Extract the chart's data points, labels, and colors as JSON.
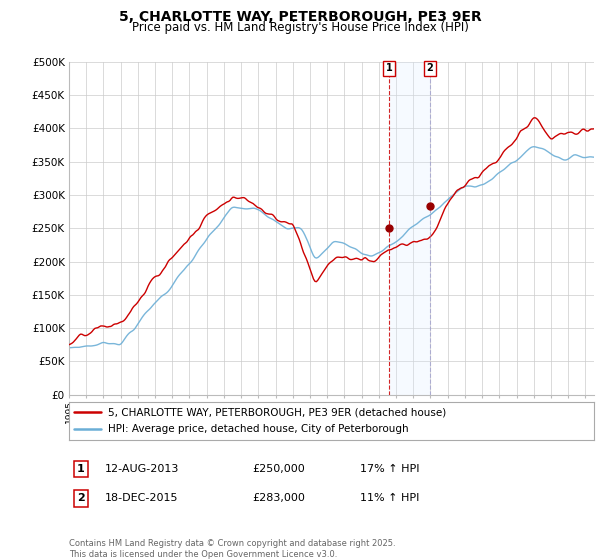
{
  "title": "5, CHARLOTTE WAY, PETERBOROUGH, PE3 9ER",
  "subtitle": "Price paid vs. HM Land Registry's House Price Index (HPI)",
  "ylabel_ticks": [
    "£0",
    "£50K",
    "£100K",
    "£150K",
    "£200K",
    "£250K",
    "£300K",
    "£350K",
    "£400K",
    "£450K",
    "£500K"
  ],
  "ytick_values": [
    0,
    50000,
    100000,
    150000,
    200000,
    250000,
    300000,
    350000,
    400000,
    450000,
    500000
  ],
  "hpi_line_color": "#6baed6",
  "price_line_color": "#cc0000",
  "event1_date": 2013.6,
  "event2_date": 2015.97,
  "event1_price": 250000,
  "event2_price": 283000,
  "legend_label1": "5, CHARLOTTE WAY, PETERBOROUGH, PE3 9ER (detached house)",
  "legend_label2": "HPI: Average price, detached house, City of Peterborough",
  "table_row1_num": "1",
  "table_row1_date": "12-AUG-2013",
  "table_row1_price": "£250,000",
  "table_row1_hpi": "17% ↑ HPI",
  "table_row2_num": "2",
  "table_row2_date": "18-DEC-2015",
  "table_row2_price": "£283,000",
  "table_row2_hpi": "11% ↑ HPI",
  "footer": "Contains HM Land Registry data © Crown copyright and database right 2025.\nThis data is licensed under the Open Government Licence v3.0.",
  "background_color": "#ffffff",
  "plot_bg_color": "#ffffff",
  "grid_color": "#cccccc",
  "span_color": "#ddeeff"
}
